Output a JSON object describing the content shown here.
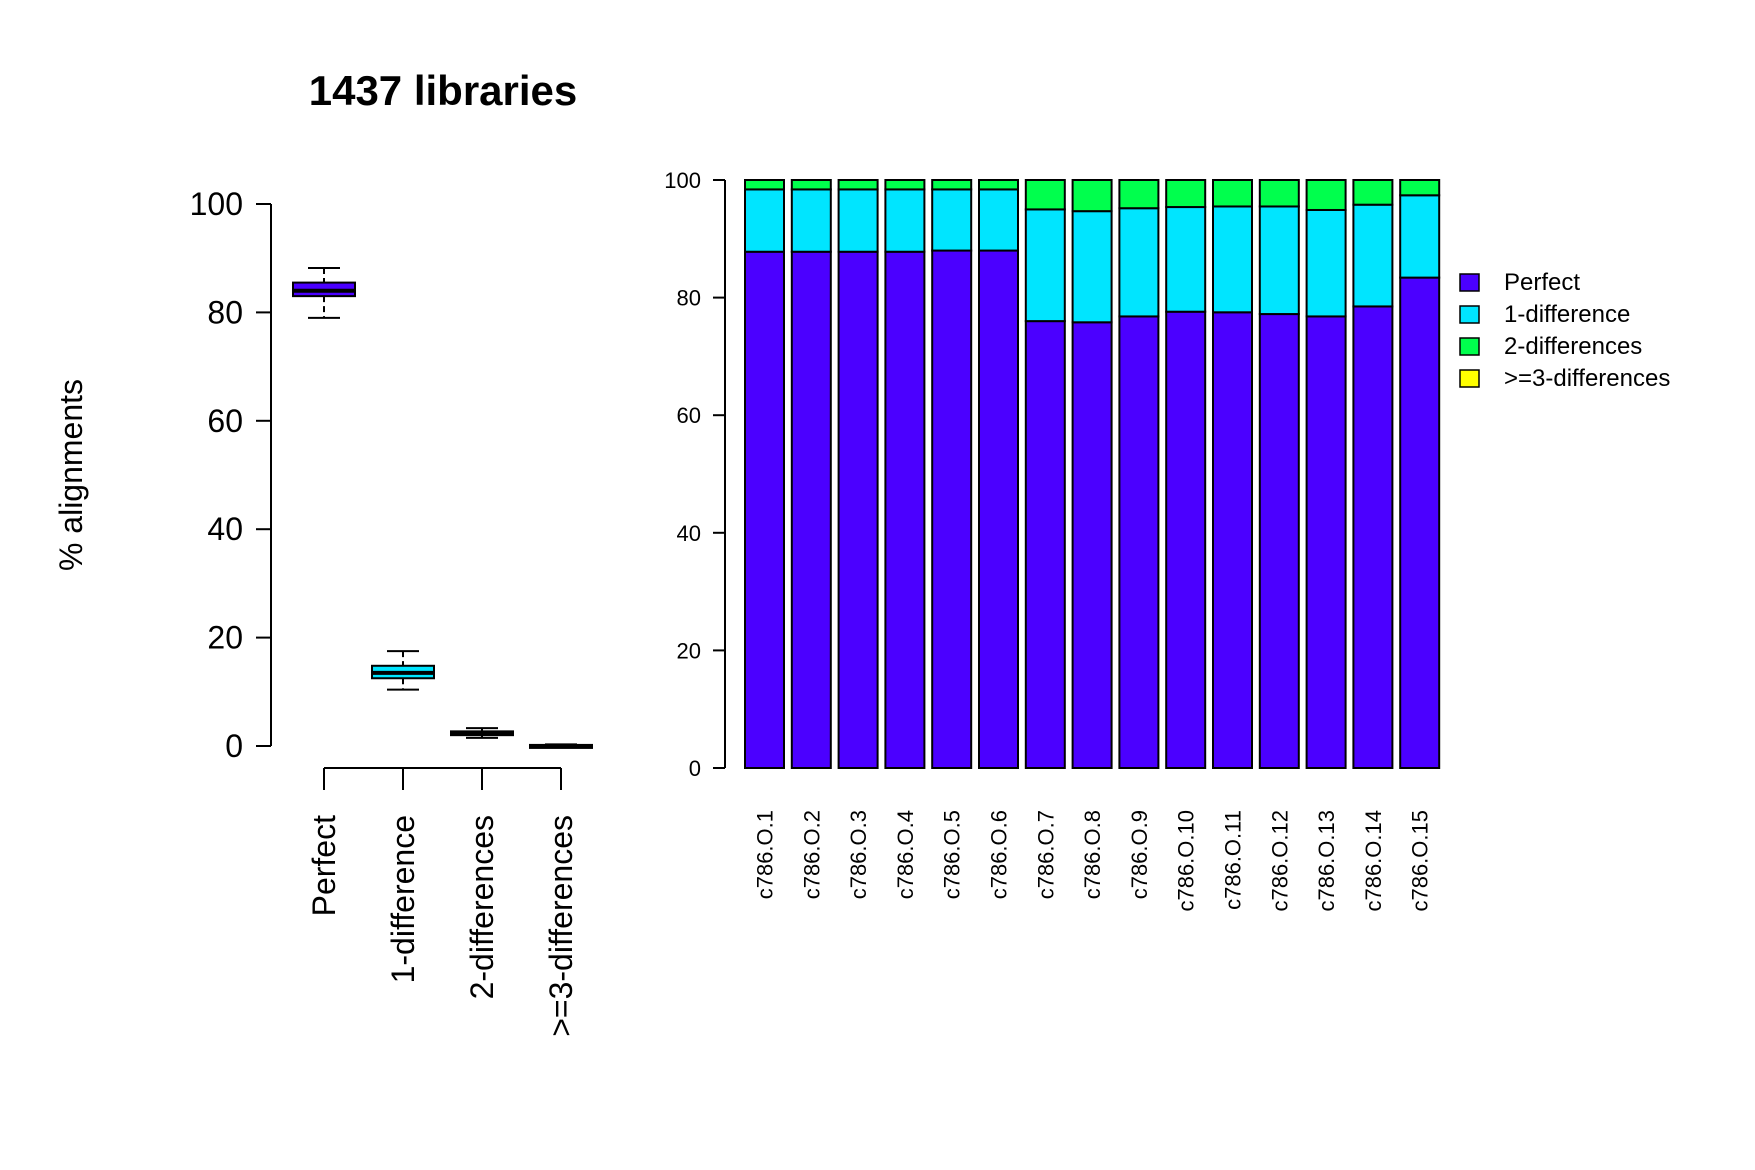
{
  "chart_data": [
    {
      "type": "box",
      "title": "1437 libraries",
      "ylabel": "% alignments",
      "ylim": [
        0,
        100
      ],
      "yticks": [
        0,
        20,
        40,
        60,
        80,
        100
      ],
      "categories": [
        "Perfect",
        "1-difference",
        "2-differences",
        ">=3-differences"
      ],
      "boxes": [
        {
          "min": 79,
          "q1": 83,
          "median": 84,
          "q3": 85.5,
          "max": 88.2
        },
        {
          "min": 10.4,
          "q1": 12.5,
          "median": 13.5,
          "q3": 14.8,
          "max": 17.5
        },
        {
          "min": 1.5,
          "q1": 2,
          "median": 2.3,
          "q3": 2.7,
          "max": 3.3
        },
        {
          "min": 0,
          "q1": 0,
          "median": 0,
          "q3": 0.2,
          "max": 0.3
        }
      ],
      "colors": [
        "#4B00FF",
        "#00E5FF",
        "#00FF4D",
        "#FFFF00"
      ]
    },
    {
      "type": "bar",
      "stacked": true,
      "ylim": [
        0,
        100
      ],
      "yticks": [
        0,
        20,
        40,
        60,
        80,
        100
      ],
      "categories": [
        "c786.O.1",
        "c786.O.2",
        "c786.O.3",
        "c786.O.4",
        "c786.O.5",
        "c786.O.6",
        "c786.O.7",
        "c786.O.8",
        "c786.O.9",
        "c786.O.10",
        "c786.O.11",
        "c786.O.12",
        "c786.O.13",
        "c786.O.14",
        "c786.O.15"
      ],
      "series": [
        {
          "name": "Perfect",
          "color": "#4B00FF",
          "values": [
            87.8,
            87.8,
            87.8,
            87.8,
            88.0,
            88.0,
            76.0,
            75.8,
            76.8,
            77.6,
            77.5,
            77.2,
            76.8,
            78.5,
            83.4
          ]
        },
        {
          "name": "1-difference",
          "color": "#00E5FF",
          "values": [
            10.6,
            10.6,
            10.6,
            10.6,
            10.4,
            10.4,
            19.0,
            18.9,
            18.4,
            17.8,
            18.0,
            18.3,
            18.1,
            17.3,
            14.0
          ]
        },
        {
          "name": "2-differences",
          "color": "#00FF4D",
          "values": [
            1.6,
            1.6,
            1.6,
            1.6,
            1.6,
            1.6,
            5.0,
            5.3,
            4.8,
            4.6,
            4.5,
            4.5,
            5.1,
            4.2,
            2.6
          ]
        },
        {
          "name": ">=3-differences",
          "color": "#FFFF00",
          "values": [
            0,
            0,
            0,
            0,
            0,
            0,
            0,
            0,
            0,
            0,
            0,
            0,
            0,
            0,
            0
          ]
        }
      ],
      "legend_position": "right"
    }
  ]
}
